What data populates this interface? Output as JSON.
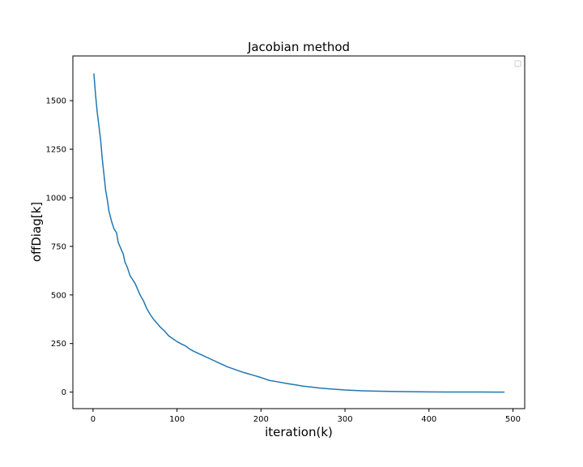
{
  "chart_data": {
    "type": "line",
    "title": "Jacobian method",
    "xlabel": "iteration(k)",
    "ylabel": "offDiag[k]",
    "xlim": [
      -24,
      514
    ],
    "ylim": [
      -85,
      1730
    ],
    "xticks": [
      0,
      100,
      200,
      300,
      400,
      500
    ],
    "yticks": [
      0,
      250,
      500,
      750,
      1000,
      1250,
      1500
    ],
    "grid": false,
    "legend": "top-right",
    "line_color": "#1f77b4",
    "series": [
      {
        "x": [
          1,
          3,
          5,
          7,
          9,
          11,
          13,
          15,
          17,
          19,
          22,
          25,
          28,
          30,
          33,
          36,
          38,
          41,
          44,
          47,
          50,
          53,
          56,
          60,
          64,
          68,
          72,
          76,
          80,
          85,
          90,
          95,
          100,
          105,
          110,
          115,
          120,
          125,
          130,
          140,
          150,
          160,
          170,
          180,
          190,
          200,
          210,
          220,
          230,
          240,
          250,
          260,
          270,
          280,
          290,
          300,
          320,
          340,
          360,
          380,
          400,
          420,
          440,
          460,
          480,
          490
        ],
        "values": [
          1640,
          1530,
          1440,
          1370,
          1300,
          1200,
          1120,
          1040,
          990,
          930,
          880,
          840,
          820,
          770,
          740,
          710,
          670,
          640,
          600,
          580,
          560,
          530,
          500,
          470,
          430,
          400,
          375,
          355,
          335,
          315,
          290,
          275,
          260,
          248,
          238,
          222,
          210,
          200,
          190,
          170,
          150,
          130,
          115,
          100,
          88,
          75,
          60,
          53,
          45,
          38,
          31,
          26,
          21,
          17,
          14,
          11,
          7,
          4.5,
          3,
          2,
          1.3,
          0.8,
          0.5,
          0.3,
          0.2,
          0.1
        ]
      }
    ]
  }
}
